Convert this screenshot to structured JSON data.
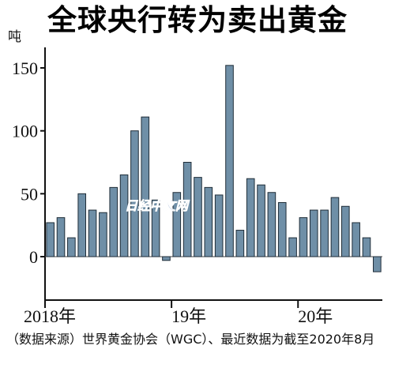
{
  "chart_data": {
    "type": "bar",
    "title": "全球央行转为卖出黄金",
    "unit_label": "吨",
    "source_note": "（数据来源）世界黄金协会（WGC）、最近数据为截至2020年8月",
    "watermark": "日经中文网",
    "ylim": [
      -15,
      170
    ],
    "yticks": [
      0,
      50,
      100,
      150
    ],
    "ytick_labels": [
      "0",
      "50",
      "100",
      "150"
    ],
    "grid": false,
    "legend": "none",
    "x_year_labels": [
      {
        "label": "2018年",
        "index": 0
      },
      {
        "label": "19年",
        "index": 12
      },
      {
        "label": "20年",
        "index": 24
      }
    ],
    "categories": [
      "2018-01",
      "2018-02",
      "2018-03",
      "2018-04",
      "2018-05",
      "2018-06",
      "2018-07",
      "2018-08",
      "2018-09",
      "2018-10",
      "2018-11",
      "2018-12",
      "2019-01",
      "2019-02",
      "2019-03",
      "2019-04",
      "2019-05",
      "2019-06",
      "2019-07",
      "2019-08",
      "2019-09",
      "2019-10",
      "2019-11",
      "2019-12",
      "2020-01",
      "2020-02",
      "2020-03",
      "2020-04",
      "2020-05",
      "2020-06",
      "2020-07",
      "2020-08"
    ],
    "values": [
      27,
      31,
      15,
      50,
      37,
      35,
      55,
      65,
      100,
      111,
      45,
      -3,
      51,
      75,
      63,
      55,
      49,
      152,
      21,
      62,
      57,
      51,
      43,
      15,
      31,
      37,
      37,
      47,
      40,
      27,
      15,
      -12
    ],
    "colors": {
      "bar_fill": "#6f8fa7",
      "bar_stroke": "#1f2d38",
      "axis": "#111111",
      "baseline": "#444444",
      "watermark": "#4a76b8"
    }
  }
}
